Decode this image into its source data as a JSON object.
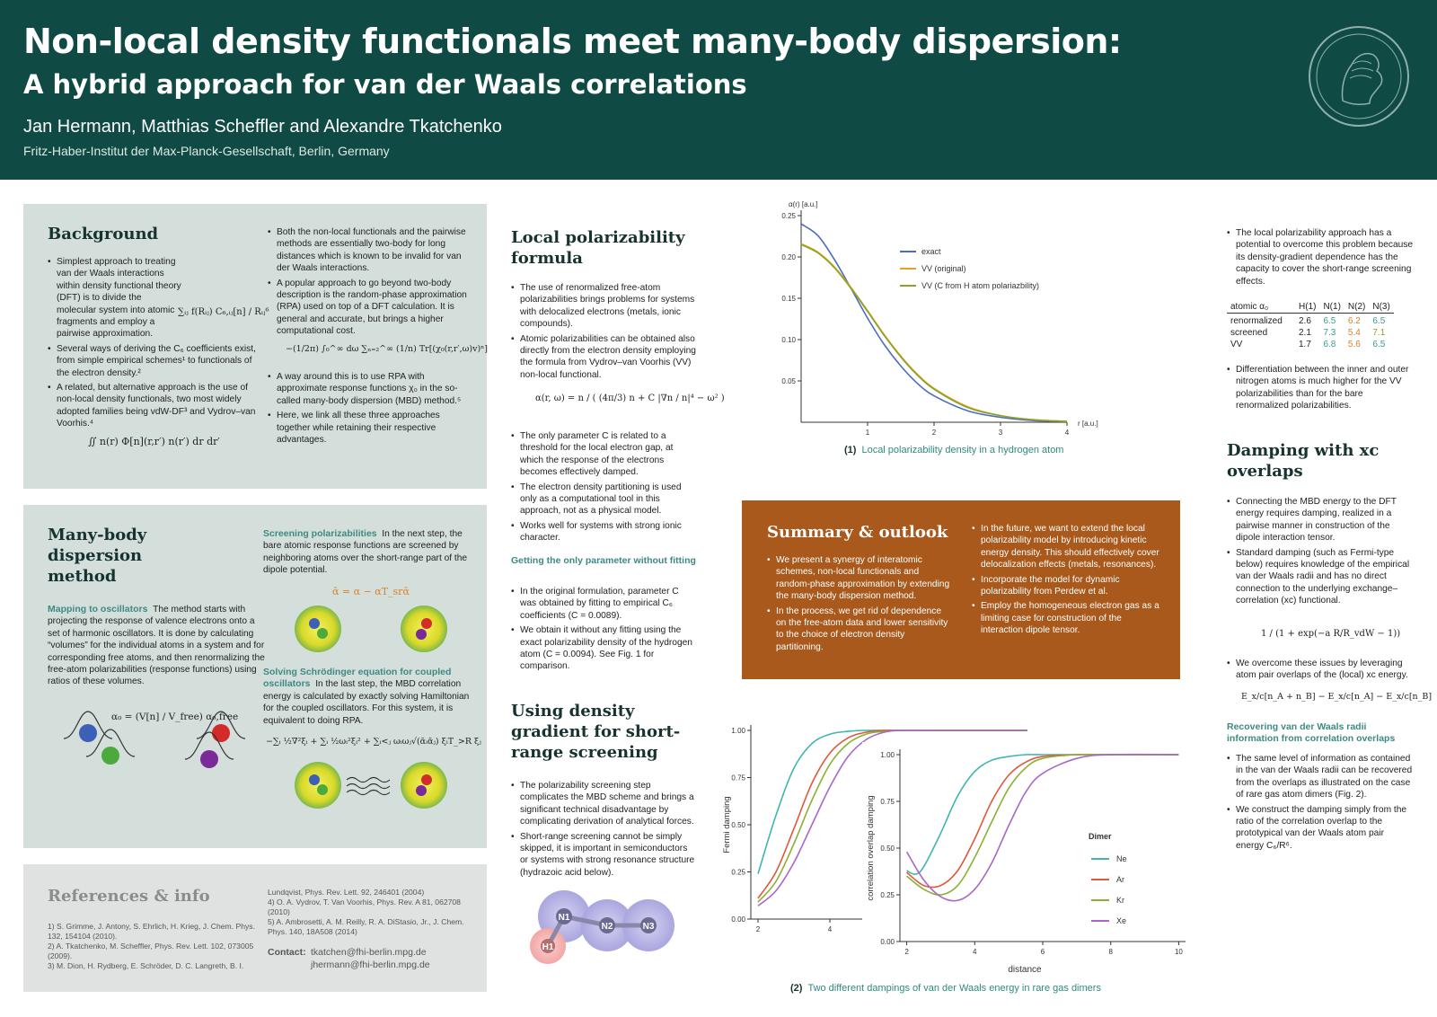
{
  "header": {
    "title_line1": "Non-local density functionals meet many-body dispersion:",
    "title_line2": "A hybrid approach for van der Waals correlations",
    "authors": "Jan Hermann, Matthias Scheffler and Alexandre Tkatchenko",
    "affiliation": "Fritz-Haber-Institut der Max-Planck-Gesellschaft, Berlin, Germany"
  },
  "background": {
    "title": "Background",
    "col1": [
      "Simplest approach to treating van der Waals interactions within density functional theory (DFT) is to divide the molecular system into atomic fragments and employ a pairwise approximation.",
      "Several ways of deriving the C₆ coefficients exist, from simple empirical schemes¹ to functionals of the electron density.²",
      "A related, but alternative approach is the use of non-local density functionals, two most widely adopted families being vdW-DF³ and Vydrov–van Voorhis.⁴"
    ],
    "col2": [
      "Both the non-local functionals and the pairwise methods are essentially two-body for long distances which is known to be invalid for van der Waals interactions.",
      "A popular approach to go beyond two-body description is the random-phase approximation (RPA) used on top of a DFT calculation. It is general and accurate, but brings a higher computational cost.",
      "A way around this is to use RPA with approximate response functions χ₀ in the so-called many-body dispersion (MBD) method.⁵",
      "Here, we link all these three approaches together while retaining their respective advantages."
    ],
    "formula_pairwise": "∑ᵢⱼ f(Rᵢⱼ) C₆,ᵢⱼ[n] / Rᵢⱼ⁶",
    "formula_rpa": "−(1/2π) ∫₀^∞ dω ∑ₙ₌₂^∞ (1/n) Tr[(χ₀(r,r′,ω)v)ⁿ]",
    "formula_nl": "∬ n(r) Φ[n](r,r′) n(r′) dr dr′"
  },
  "mbd": {
    "title": "Many-body dispersion method",
    "mapping_head": "Mapping to oscillators",
    "mapping_text": "The method starts with projecting the response of valence electrons onto a set of harmonic oscillators. It is done by calculating “volumes” for the individual atoms in a system and for corresponding free atoms, and then renormalizing the free-atom polarizabilities (response functions) using ratios of these volumes.",
    "formula_alpha": "α₀ = (V[n] / V_free) α₀,free",
    "screening_head": "Screening polarizabilities",
    "screening_text": "In the next step, the bare atomic response functions are screened by neighboring atoms over the short-range part of the dipole potential.",
    "formula_screen": "ᾱ = α − αT_srᾱ",
    "solving_head": "Solving Schrödinger equation for coupled oscillators",
    "solving_text": "In the last step, the MBD correlation energy is calculated by exactly solving Hamiltonian for the coupled oscillators. For this system, it is equivalent to doing RPA.",
    "formula_ham": "−∑ᵢ ½∇²ξᵢ + ∑ᵢ ½ωᵢ²ξᵢ² + ∑ᵢ<ⱼ ωᵢωⱼ√(ᾱᵢᾱⱼ) ξᵢT_>R ξⱼ"
  },
  "refs": {
    "title": "References & info",
    "col1": [
      "1) S. Grimme, J. Antony, S. Ehrlich, H. Krieg, J. Chem. Phys. 132, 154104 (2010).",
      "2) A. Tkatchenko, M. Scheffler, Phys. Rev. Lett. 102, 073005 (2009).",
      "3) M. Dion, H. Rydberg, E. Schröder, D. C. Langreth, B. I."
    ],
    "col2": [
      "Lundqvist, Phys. Rev. Lett. 92, 246401 (2004)",
      "4) O. A. Vydrov, T. Van Voorhis, Phys. Rev. A 81, 062708 (2010)",
      "5) A. Ambrosetti, A. M. Reilly, R. A. DiStasio, Jr., J. Chem. Phys. 140, 18A508 (2014)"
    ],
    "contact_label": "Contact:",
    "contact1": "tkatchen@fhi-berlin.mpg.de",
    "contact2": "jhermann@fhi-berlin.mpg.de"
  },
  "local": {
    "title": "Local polarizability formula",
    "items": [
      "The use of renormalized free-atom polarizabilities brings problems for systems with delocalized electrons (metals, ionic compounds).",
      "Atomic polarizabilities can be obtained also directly from the electron density employing the formula from Vydrov–van Voorhis (VV) non-local functional."
    ],
    "formula": "α(r, ω) = n / ( (4π/3) n + C |∇n / n|⁴ − ω² )",
    "items2": [
      "The only parameter C is related to a threshold for the local electron gap, at which the response of the electrons becomes effectively damped.",
      "The electron density partitioning is used only as a computational tool in this approach, not as a physical model.",
      "Works well for systems with strong ionic character."
    ],
    "fitting_head": "Getting the only parameter without fitting",
    "items3": [
      "In the original formulation, parameter C was obtained by fitting to empirical C₆ coefficients (C = 0.0089).",
      "We obtain it without any fitting using the exact polarizability density of the hydrogen atom (C = 0.0094). See Fig. 1 for comparison."
    ]
  },
  "gradient": {
    "title": "Using density gradient for short-range screening",
    "items": [
      "The polarizability screening step complicates the MBD scheme and brings a significant technical disadvantage by complicating derivation of analytical forces.",
      "Short-range screening cannot be simply skipped, it is important in semiconductors or systems with strong resonance structure (hydrazoic acid below)."
    ],
    "atoms": [
      "N1",
      "N2",
      "N3",
      "H1"
    ]
  },
  "fig1": {
    "caption_num": "(1)",
    "caption": "Local polarizability density in a hydrogen atom"
  },
  "fig2": {
    "caption_num": "(2)",
    "caption": "Two different dampings of van der Waals energy in rare gas dimers",
    "legend_title": "Dimer"
  },
  "summary": {
    "title": "Summary & outlook",
    "col1": [
      "We present a synergy of interatomic schemes, non-local functionals and random-phase approximation by extending the many-body dispersion method.",
      "In the process, we get rid of dependence on the free-atom data and lower sensitivity to the choice of electron density partitioning."
    ],
    "col2": [
      "In the future, we want to extend the local polarizability model by introducing kinetic energy density. This should effectively cover delocalization effects (metals, resonances).",
      "Incorporate the model for dynamic polarizability from Perdew et al.",
      "Employ the homogeneous electron gas as a limiting case for construction of the interaction dipole tensor."
    ]
  },
  "right": {
    "top_item": "The local polarizability approach has a potential to overcome this problem because its density-gradient dependence has the capacity to cover the short-range screening effects.",
    "table": {
      "headers": [
        "atomic α₀",
        "H(1)",
        "N(1)",
        "N(2)",
        "N(3)"
      ],
      "rows": [
        [
          "renormalized",
          "2.6",
          "6.5",
          "6.2",
          "6.5"
        ],
        [
          "screened",
          "2.1",
          "7.3",
          "5.4",
          "7.1"
        ],
        [
          "VV",
          "1.7",
          "6.8",
          "5.6",
          "6.5"
        ]
      ]
    },
    "table_item": "Differentiation between the inner and outer nitrogen atoms is much higher for the VV polarizabilities than for the bare renormalized polarizabilities.",
    "damping_title": "Damping with xc overlaps",
    "damping_items": [
      "Connecting the MBD energy to the DFT energy requires damping, realized in a pairwise manner in construction of the dipole interaction tensor.",
      "Standard damping (such as Fermi-type below) requires knowledge of the empirical van der Waals radii and has no direct connection to the underlying exchange–correlation (xc) functional."
    ],
    "formula_fermi": "1 / (1 + exp(−a R/R_vdW − 1))",
    "damping_item3": "We overcome these issues by leveraging atom pair overlaps of the (local) xc energy.",
    "formula_xc": "E_x/c[n_A + n_B] − E_x/c[n_A] − E_x/c[n_B]",
    "recover_head": "Recovering van der Waals radii information from correlation overlaps",
    "recover_items": [
      "The same level of information as contained in the van der Waals radii can be recovered from the overlaps as illustrated on the case of rare gas atom dimers (Fig. 2).",
      "We construct the damping simply from the ratio of the correlation overlap to the prototypical van der Waals atom pair energy C₆/R⁶."
    ]
  },
  "chart_data": [
    {
      "type": "line",
      "ylabel": "α(r) [a.u.]",
      "xlabel": "r [a.u.]",
      "xlim": [
        0,
        4
      ],
      "ylim": [
        0,
        0.25
      ],
      "xticks": [
        1,
        2,
        3,
        4
      ],
      "yticks": [
        0.05,
        0.1,
        0.15,
        0.2,
        0.25
      ],
      "series": [
        {
          "name": "exact",
          "color": "#4a6cc4",
          "x": [
            0,
            0.25,
            0.5,
            0.75,
            1,
            1.25,
            1.5,
            1.75,
            2,
            2.5,
            3,
            3.5,
            4
          ],
          "y": [
            0.24,
            0.226,
            0.197,
            0.162,
            0.126,
            0.094,
            0.068,
            0.047,
            0.032,
            0.014,
            0.006,
            0.002,
            0.001
          ]
        },
        {
          "name": "VV (original)",
          "color": "#e8a020",
          "x": [
            0,
            0.25,
            0.5,
            0.75,
            1,
            1.25,
            1.5,
            1.75,
            2,
            2.5,
            3,
            3.5,
            4
          ],
          "y": [
            0.216,
            0.206,
            0.188,
            0.163,
            0.135,
            0.106,
            0.08,
            0.058,
            0.041,
            0.019,
            0.008,
            0.003,
            0.001
          ]
        },
        {
          "name": "VV (C from H atom polariazbility)",
          "color": "#8aa325",
          "x": [
            0,
            0.25,
            0.5,
            0.75,
            1,
            1.25,
            1.5,
            1.75,
            2,
            2.5,
            3,
            3.5,
            4
          ],
          "y": [
            0.215,
            0.205,
            0.187,
            0.162,
            0.134,
            0.105,
            0.079,
            0.057,
            0.04,
            0.018,
            0.008,
            0.003,
            0.001
          ]
        }
      ]
    },
    {
      "type": "line",
      "ylabel": "Fermi damping",
      "xlim": [
        1.8,
        9.8
      ],
      "ylim": [
        0,
        1
      ],
      "xticks": [
        2,
        4
      ],
      "yticks": [
        0.0,
        0.25,
        0.5,
        0.75,
        1.0
      ],
      "series": [
        {
          "name": "Ne",
          "color": "#3fb6b0",
          "x": [
            2,
            2.5,
            3,
            3.5,
            4,
            4.5,
            5,
            6,
            7,
            8,
            9.5
          ],
          "y": [
            0.24,
            0.55,
            0.8,
            0.93,
            0.98,
            0.995,
            1,
            1,
            1,
            1,
            1
          ]
        },
        {
          "name": "Ar",
          "color": "#e0573a",
          "x": [
            2,
            2.5,
            3,
            3.5,
            4,
            4.5,
            5,
            5.5,
            6,
            7,
            9.5
          ],
          "y": [
            0.11,
            0.25,
            0.48,
            0.72,
            0.88,
            0.96,
            0.99,
            1,
            1,
            1,
            1
          ]
        },
        {
          "name": "Kr",
          "color": "#8ab034",
          "x": [
            2,
            2.5,
            3,
            3.5,
            4,
            4.5,
            5,
            5.5,
            6,
            7,
            9.5
          ],
          "y": [
            0.09,
            0.2,
            0.4,
            0.63,
            0.82,
            0.93,
            0.98,
            0.995,
            1,
            1,
            1
          ]
        },
        {
          "name": "Xe",
          "color": "#a967c6",
          "x": [
            2,
            2.5,
            3,
            3.5,
            4,
            4.5,
            5,
            5.5,
            6,
            7,
            9.5
          ],
          "y": [
            0.07,
            0.15,
            0.3,
            0.5,
            0.7,
            0.86,
            0.95,
            0.99,
            1,
            1,
            1
          ]
        }
      ]
    },
    {
      "type": "line",
      "ylabel": "correlation overlap damping",
      "xlabel": "distance",
      "xlim": [
        1.8,
        10.2
      ],
      "ylim": [
        0,
        1
      ],
      "xticks": [
        2,
        4,
        6,
        8,
        10
      ],
      "yticks": [
        0.0,
        0.25,
        0.5,
        0.75,
        1.0
      ],
      "legend": "Dimer",
      "series": [
        {
          "name": "Ne",
          "color": "#3fb6b0",
          "x": [
            2,
            2.25,
            2.5,
            3,
            3.5,
            4,
            4.5,
            5,
            5.5,
            6,
            7,
            10
          ],
          "y": [
            0.38,
            0.36,
            0.4,
            0.58,
            0.78,
            0.91,
            0.97,
            0.99,
            1,
            1,
            1,
            1
          ]
        },
        {
          "name": "Ar",
          "color": "#e0573a",
          "x": [
            2,
            2.5,
            3,
            3.5,
            4,
            4.5,
            5,
            5.5,
            6,
            7,
            8,
            10
          ],
          "y": [
            0.37,
            0.3,
            0.3,
            0.38,
            0.55,
            0.75,
            0.89,
            0.96,
            0.99,
            1,
            1,
            1
          ]
        },
        {
          "name": "Kr",
          "color": "#8ab034",
          "x": [
            2,
            2.5,
            3,
            3.5,
            4,
            4.5,
            5,
            5.5,
            6,
            7,
            8,
            10
          ],
          "y": [
            0.35,
            0.28,
            0.25,
            0.3,
            0.45,
            0.64,
            0.82,
            0.93,
            0.98,
            1,
            1,
            1
          ]
        },
        {
          "name": "Xe",
          "color": "#a967c6",
          "x": [
            2,
            2.5,
            3,
            3.5,
            4,
            4.5,
            5,
            5.5,
            6,
            7,
            8,
            10
          ],
          "y": [
            0.48,
            0.33,
            0.24,
            0.22,
            0.28,
            0.42,
            0.62,
            0.8,
            0.9,
            0.98,
            1,
            1
          ]
        }
      ]
    }
  ]
}
